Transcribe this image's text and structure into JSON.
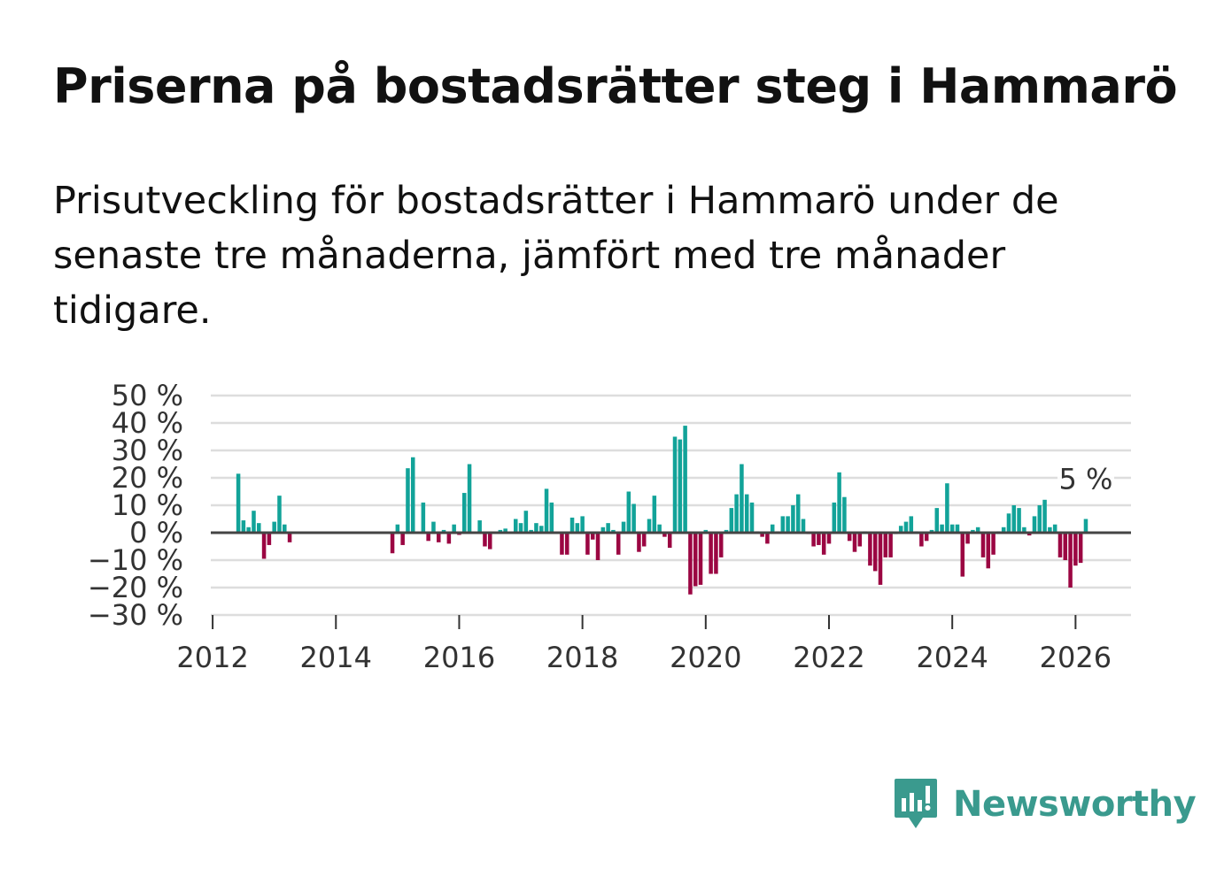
{
  "title": "Priserna på bostadsrätter steg i Hammarö",
  "subtitle": "Prisutveckling för bostadsrätter i Hammarö under de senaste tre månaderna, jämfört med tre månader tidigare.",
  "brand": {
    "name": "Newsworthy",
    "logo_icon": "bar-chart-speech-bubble-icon"
  },
  "colors": {
    "positive": "#12a399",
    "negative": "#9b0642",
    "grid": "#dddddd",
    "zero_line": "#444444",
    "brand": "#3a9a8e"
  },
  "chart_data": {
    "type": "bar",
    "title": "Priserna på bostadsrätter steg i Hammarö",
    "xlabel": "",
    "ylabel": "",
    "ylim": [
      -30,
      50
    ],
    "yticks": [
      50,
      40,
      30,
      20,
      10,
      0,
      -10,
      -20,
      -30
    ],
    "ytick_labels": [
      "50 %",
      "40 %",
      "30 %",
      "20 %",
      "10 %",
      "0 %",
      "−10 %",
      "−20 %",
      "−30 %"
    ],
    "xticks": [
      2012,
      2014,
      2016,
      2018,
      2020,
      2022,
      2024,
      2026
    ],
    "xlim": [
      2011.97,
      2026.9
    ],
    "grid": true,
    "annotation": {
      "label": "5 %",
      "target": "last"
    },
    "unit": "%",
    "series": [
      {
        "name": "Prisutveckling",
        "points": [
          {
            "x": 2012.4167,
            "y": 21.5
          },
          {
            "x": 2012.5,
            "y": 4.5
          },
          {
            "x": 2012.5833,
            "y": 2
          },
          {
            "x": 2012.6667,
            "y": 8
          },
          {
            "x": 2012.75,
            "y": 3.5
          },
          {
            "x": 2012.8333,
            "y": -9.5
          },
          {
            "x": 2012.9167,
            "y": -4.5
          },
          {
            "x": 2013.0,
            "y": 4
          },
          {
            "x": 2013.0833,
            "y": 13.5
          },
          {
            "x": 2013.1667,
            "y": 3
          },
          {
            "x": 2013.25,
            "y": -3.5
          },
          {
            "x": 2014.9167,
            "y": -7.5
          },
          {
            "x": 2015.0,
            "y": 3
          },
          {
            "x": 2015.0833,
            "y": -4.5
          },
          {
            "x": 2015.1667,
            "y": 23.5
          },
          {
            "x": 2015.25,
            "y": 27.5
          },
          {
            "x": 2015.4167,
            "y": 11
          },
          {
            "x": 2015.5,
            "y": -3
          },
          {
            "x": 2015.5833,
            "y": 4
          },
          {
            "x": 2015.6667,
            "y": -3.5
          },
          {
            "x": 2015.75,
            "y": 1
          },
          {
            "x": 2015.8333,
            "y": -4
          },
          {
            "x": 2015.9167,
            "y": 3
          },
          {
            "x": 2016.0,
            "y": -0.8
          },
          {
            "x": 2016.0833,
            "y": 14.5
          },
          {
            "x": 2016.1667,
            "y": 25
          },
          {
            "x": 2016.3333,
            "y": 4.5
          },
          {
            "x": 2016.4167,
            "y": -5
          },
          {
            "x": 2016.5,
            "y": -6
          },
          {
            "x": 2016.6667,
            "y": 1
          },
          {
            "x": 2016.75,
            "y": 1.5
          },
          {
            "x": 2016.9167,
            "y": 5
          },
          {
            "x": 2017.0,
            "y": 3.5
          },
          {
            "x": 2017.0833,
            "y": 8
          },
          {
            "x": 2017.1667,
            "y": 1
          },
          {
            "x": 2017.25,
            "y": 3.5
          },
          {
            "x": 2017.3333,
            "y": 2.5
          },
          {
            "x": 2017.4167,
            "y": 16
          },
          {
            "x": 2017.5,
            "y": 11
          },
          {
            "x": 2017.6667,
            "y": -8
          },
          {
            "x": 2017.75,
            "y": -8
          },
          {
            "x": 2017.8333,
            "y": 5.5
          },
          {
            "x": 2017.9167,
            "y": 3.5
          },
          {
            "x": 2018.0,
            "y": 6
          },
          {
            "x": 2018.0833,
            "y": -8
          },
          {
            "x": 2018.1667,
            "y": -2.5
          },
          {
            "x": 2018.25,
            "y": -10
          },
          {
            "x": 2018.3333,
            "y": 2
          },
          {
            "x": 2018.4167,
            "y": 3.5
          },
          {
            "x": 2018.5,
            "y": 1
          },
          {
            "x": 2018.5833,
            "y": -8
          },
          {
            "x": 2018.6667,
            "y": 4
          },
          {
            "x": 2018.75,
            "y": 15
          },
          {
            "x": 2018.8333,
            "y": 10.5
          },
          {
            "x": 2018.9167,
            "y": -7
          },
          {
            "x": 2019.0,
            "y": -5
          },
          {
            "x": 2019.0833,
            "y": 5
          },
          {
            "x": 2019.1667,
            "y": 13.5
          },
          {
            "x": 2019.25,
            "y": 3
          },
          {
            "x": 2019.3333,
            "y": -1.5
          },
          {
            "x": 2019.4167,
            "y": -5.5
          },
          {
            "x": 2019.5,
            "y": 35
          },
          {
            "x": 2019.5833,
            "y": 34
          },
          {
            "x": 2019.6667,
            "y": 39
          },
          {
            "x": 2019.75,
            "y": -22.5
          },
          {
            "x": 2019.8333,
            "y": -19.5
          },
          {
            "x": 2019.9167,
            "y": -19
          },
          {
            "x": 2020.0,
            "y": 1
          },
          {
            "x": 2020.0833,
            "y": -15
          },
          {
            "x": 2020.1667,
            "y": -15
          },
          {
            "x": 2020.25,
            "y": -9
          },
          {
            "x": 2020.3333,
            "y": 1
          },
          {
            "x": 2020.4167,
            "y": 9
          },
          {
            "x": 2020.5,
            "y": 14
          },
          {
            "x": 2020.5833,
            "y": 25
          },
          {
            "x": 2020.6667,
            "y": 14
          },
          {
            "x": 2020.75,
            "y": 11
          },
          {
            "x": 2020.8333,
            "y": 0.5
          },
          {
            "x": 2020.9167,
            "y": -1.5
          },
          {
            "x": 2021.0,
            "y": -4
          },
          {
            "x": 2021.0833,
            "y": 3
          },
          {
            "x": 2021.1667,
            "y": 0.5
          },
          {
            "x": 2021.25,
            "y": 6
          },
          {
            "x": 2021.3333,
            "y": 6
          },
          {
            "x": 2021.4167,
            "y": 10
          },
          {
            "x": 2021.5,
            "y": 14
          },
          {
            "x": 2021.5833,
            "y": 5
          },
          {
            "x": 2021.6667,
            "y": -0.5
          },
          {
            "x": 2021.75,
            "y": -5
          },
          {
            "x": 2021.8333,
            "y": -4.5
          },
          {
            "x": 2021.9167,
            "y": -8
          },
          {
            "x": 2022.0,
            "y": -4
          },
          {
            "x": 2022.0833,
            "y": 11
          },
          {
            "x": 2022.1667,
            "y": 22
          },
          {
            "x": 2022.25,
            "y": 13
          },
          {
            "x": 2022.3333,
            "y": -3
          },
          {
            "x": 2022.4167,
            "y": -7
          },
          {
            "x": 2022.5,
            "y": -5
          },
          {
            "x": 2022.5833,
            "y": 0.5
          },
          {
            "x": 2022.6667,
            "y": -12
          },
          {
            "x": 2022.75,
            "y": -14
          },
          {
            "x": 2022.8333,
            "y": -19
          },
          {
            "x": 2022.9167,
            "y": -9
          },
          {
            "x": 2023.0,
            "y": -9
          },
          {
            "x": 2023.0833,
            "y": -0.5
          },
          {
            "x": 2023.1667,
            "y": 2.5
          },
          {
            "x": 2023.25,
            "y": 4
          },
          {
            "x": 2023.3333,
            "y": 6
          },
          {
            "x": 2023.4167,
            "y": 0.5
          },
          {
            "x": 2023.5,
            "y": -5
          },
          {
            "x": 2023.5833,
            "y": -3
          },
          {
            "x": 2023.6667,
            "y": 1
          },
          {
            "x": 2023.75,
            "y": 9
          },
          {
            "x": 2023.8333,
            "y": 3
          },
          {
            "x": 2023.9167,
            "y": 18
          },
          {
            "x": 2024.0,
            "y": 3
          },
          {
            "x": 2024.0833,
            "y": 3
          },
          {
            "x": 2024.1667,
            "y": -16
          },
          {
            "x": 2024.25,
            "y": -4
          },
          {
            "x": 2024.3333,
            "y": 1
          },
          {
            "x": 2024.4167,
            "y": 2
          },
          {
            "x": 2024.5,
            "y": -9
          },
          {
            "x": 2024.5833,
            "y": -13
          },
          {
            "x": 2024.6667,
            "y": -8
          },
          {
            "x": 2024.75,
            "y": 0.5
          },
          {
            "x": 2024.8333,
            "y": 2
          },
          {
            "x": 2024.9167,
            "y": 7
          },
          {
            "x": 2025.0,
            "y": 10
          },
          {
            "x": 2025.0833,
            "y": 9
          },
          {
            "x": 2025.1667,
            "y": 2
          },
          {
            "x": 2025.25,
            "y": -1
          },
          {
            "x": 2025.3333,
            "y": 6
          },
          {
            "x": 2025.4167,
            "y": 10
          },
          {
            "x": 2025.5,
            "y": 12
          },
          {
            "x": 2025.5833,
            "y": 2
          },
          {
            "x": 2025.6667,
            "y": 3
          },
          {
            "x": 2025.75,
            "y": -9
          },
          {
            "x": 2025.8333,
            "y": -10
          },
          {
            "x": 2025.9167,
            "y": -20
          },
          {
            "x": 2026.0,
            "y": -12
          },
          {
            "x": 2026.0833,
            "y": -11
          },
          {
            "x": 2026.1667,
            "y": 5
          }
        ]
      }
    ]
  }
}
